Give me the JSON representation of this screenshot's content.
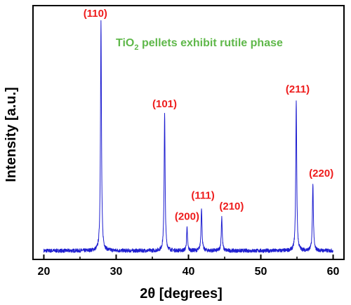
{
  "chart_data": {
    "type": "line",
    "xlabel": "2θ [degrees]",
    "ylabel": "Intensity [a.u.]",
    "xlim": [
      18.5,
      61.5
    ],
    "ylim": [
      0,
      100
    ],
    "xticks": [
      20,
      30,
      40,
      50,
      60
    ],
    "grid": false,
    "annotation": {
      "main": "TiO",
      "sub": "2",
      "rest": " pellets exhibit rutile phase"
    },
    "colors": {
      "series": "#1f1fd0",
      "peak_labels": "#ee1c1c",
      "annotation": "#5fb84a"
    },
    "baseline": 2.5,
    "peaks": [
      {
        "label": "(110)",
        "x": 27.9,
        "y": 100
      },
      {
        "label": "(101)",
        "x": 36.7,
        "y": 61
      },
      {
        "label": "(200)",
        "x": 39.8,
        "y": 12
      },
      {
        "label": "(111)",
        "x": 41.8,
        "y": 21
      },
      {
        "label": "(210)",
        "x": 44.6,
        "y": 17
      },
      {
        "label": "(211)",
        "x": 54.9,
        "y": 66
      },
      {
        "label": "(220)",
        "x": 57.2,
        "y": 31
      }
    ]
  }
}
